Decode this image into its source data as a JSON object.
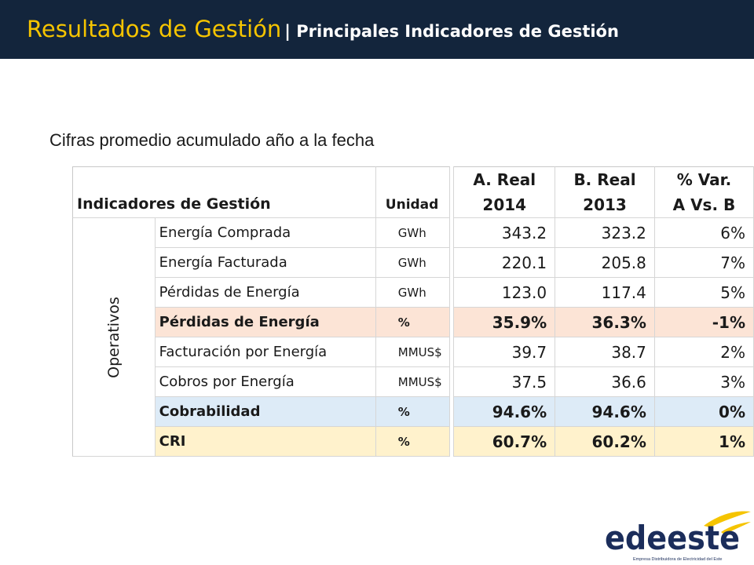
{
  "header": {
    "title": "Resultados de Gestión",
    "subtitle": "| Principales Indicadores de Gestión",
    "colors": {
      "background": "#13253c",
      "title": "#f5c400",
      "subtitle": "#ffffff"
    }
  },
  "subtitle": "Cifras promedio acumulado año a la fecha",
  "table": {
    "headers": {
      "indicator": "Indicadores de Gestión",
      "unit": "Unidad",
      "col_a": [
        "A. Real",
        "2014"
      ],
      "col_b": [
        "B. Real",
        "2013"
      ],
      "col_var": [
        "% Var.",
        "A Vs. B"
      ]
    },
    "group_label": "Operativos",
    "rows": [
      {
        "name": "Energía Comprada",
        "unit": "GWh",
        "a": "343.2",
        "b": "323.2",
        "var": "6%"
      },
      {
        "name": "Energía Facturada",
        "unit": "GWh",
        "a": "220.1",
        "b": "205.8",
        "var": "7%"
      },
      {
        "name": "Pérdidas de Energía",
        "unit": "GWh",
        "a": "123.0",
        "b": "117.4",
        "var": "5%"
      },
      {
        "name": "Pérdidas de Energía",
        "unit": "%",
        "a": "35.9%",
        "b": "36.3%",
        "var": "-1%"
      },
      {
        "name": "Facturación por Energía",
        "unit": "MMUS$",
        "a": "39.7",
        "b": "38.7",
        "var": "2%"
      },
      {
        "name": "Cobros por Energía",
        "unit": "MMUS$",
        "a": "37.5",
        "b": "36.6",
        "var": "3%"
      },
      {
        "name": "Cobrabilidad",
        "unit": "%",
        "a": "94.6%",
        "b": "94.6%",
        "var": "0%"
      },
      {
        "name": "CRI",
        "unit": "%",
        "a": "60.7%",
        "b": "60.2%",
        "var": "1%"
      }
    ],
    "highlight_colors": {
      "peach": "#fce4d6",
      "blue": "#ddebf7",
      "yellow": "#fff2cc"
    }
  },
  "logo": {
    "name": "edeeste",
    "tagline": "Empresa Distribuidora de Electricidad del Este",
    "colors": {
      "text": "#1b2d5b",
      "swoosh": "#f5c400"
    }
  }
}
